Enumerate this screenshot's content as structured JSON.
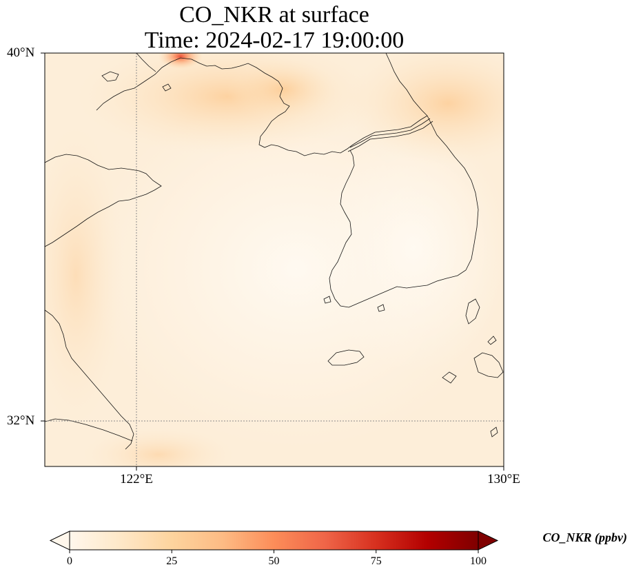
{
  "title": {
    "line1": "CO_NKR at surface",
    "line2": "Time: 2024-02-17 19:00:00"
  },
  "axes": {
    "lat_labels": [
      "40°N",
      "32°N"
    ],
    "lon_labels": [
      "122°E",
      "130°E"
    ],
    "lat_range": [
      31,
      40
    ],
    "lon_range": [
      120,
      130
    ],
    "gridlines": {
      "lat": 32,
      "lon": 122,
      "style": "dotted"
    }
  },
  "colorbar": {
    "label": "CO_NKR (ppbv)",
    "ticks": [
      "0",
      "25",
      "50",
      "75",
      "100"
    ],
    "range": [
      0,
      100
    ],
    "extend": "both",
    "cmap": "OrRd",
    "colors": [
      "#fff7ec",
      "#fee8c8",
      "#fdd49e",
      "#fdbb84",
      "#fc8d59",
      "#ef6548",
      "#d7301f",
      "#b30000",
      "#7f0000"
    ]
  },
  "map": {
    "region": "Yellow Sea / Korean Peninsula",
    "hotspot_location": "north-west near Liaodong (Dalian area)",
    "hotspot_max_ppbv": 40
  }
}
